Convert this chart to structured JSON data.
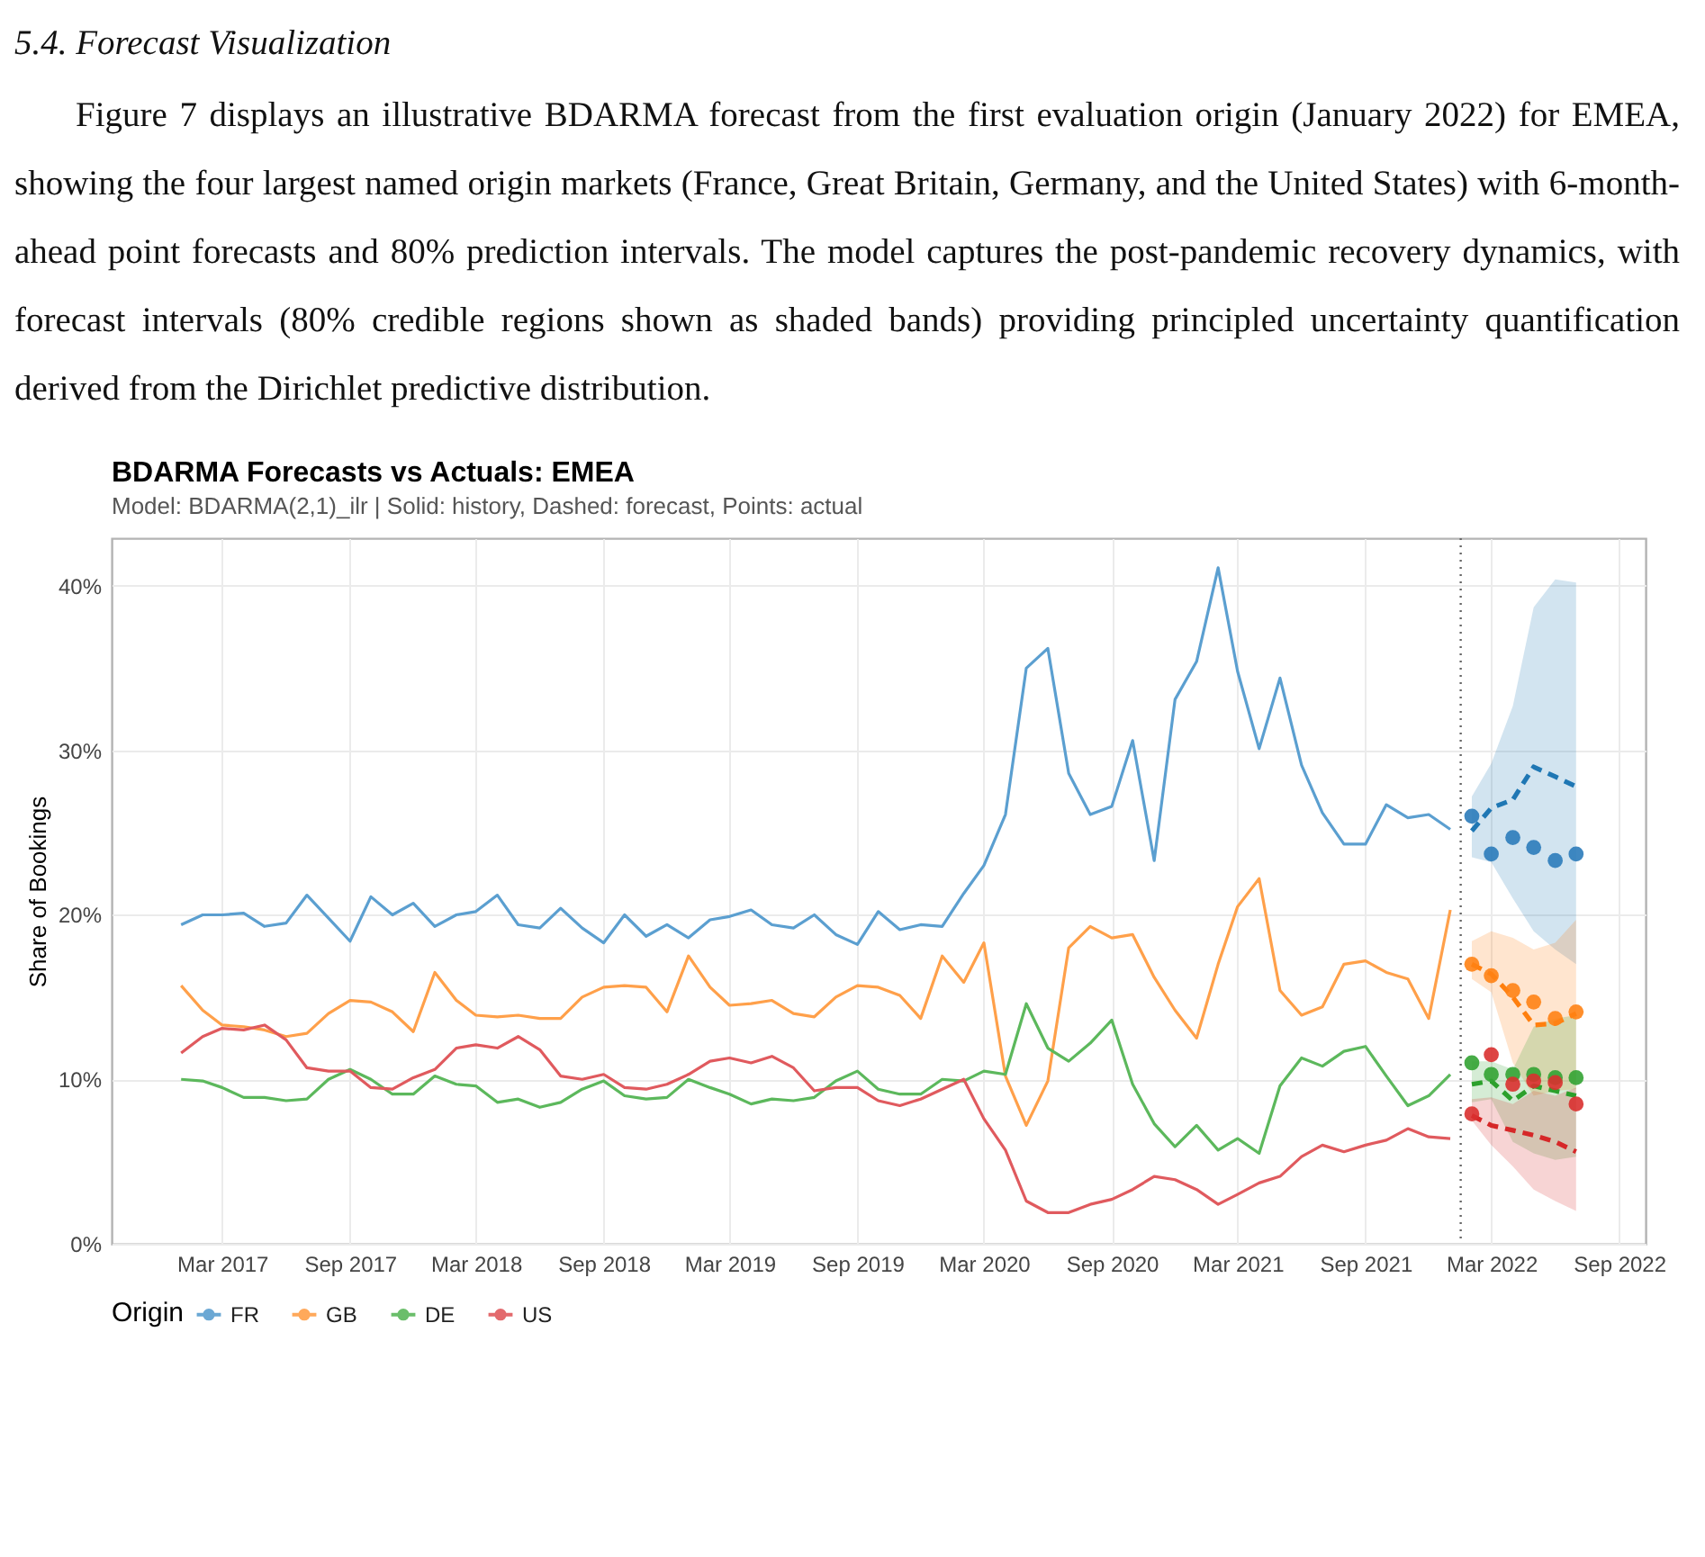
{
  "chart_data": {
    "type": "line",
    "title": "BDARMA Forecasts vs Actuals: EMEA",
    "subtitle": "Model: BDARMA(2,1)_ilr | Solid: history, Dashed: forecast, Points: actual",
    "ylabel": "Share of Bookings",
    "legend_title": "Origin",
    "legend": "bottom",
    "grid": true,
    "annotations": [
      "5.4. Forecast Visualization",
      "Figure 7 displays an illustrative BDARMA forecast from the first evaluation origin (January 2022) for EMEA, showing the four largest named origin markets (France, Great Britain, Germany, and the United States) with 6-month-ahead point forecasts and 80% prediction intervals. The model captures the post-pandemic recovery dynamics, with forecast intervals (80% credible regions shown as shaded bands) providing principled uncertainty quantification derived from the Dirichlet predictive distribution."
    ],
    "xlim": [
      "2016-09-23",
      "2022-10-09"
    ],
    "xticks": [
      {
        "value": "2017-03",
        "label": "Mar 2017"
      },
      {
        "value": "2017-09",
        "label": "Sep 2017"
      },
      {
        "value": "2018-03",
        "label": "Mar 2018"
      },
      {
        "value": "2018-09",
        "label": "Sep 2018"
      },
      {
        "value": "2019-03",
        "label": "Mar 2019"
      },
      {
        "value": "2019-09",
        "label": "Sep 2019"
      },
      {
        "value": "2020-03",
        "label": "Mar 2020"
      },
      {
        "value": "2020-09",
        "label": "Sep 2020"
      },
      {
        "value": "2021-03",
        "label": "Mar 2021"
      },
      {
        "value": "2021-09",
        "label": "Sep 2021"
      },
      {
        "value": "2022-03",
        "label": "Mar 2022"
      },
      {
        "value": "2022-09",
        "label": "Sep 2022"
      }
    ],
    "ylim": [
      0,
      42.9
    ],
    "yticks": [
      {
        "value": 0,
        "label": "0%"
      },
      {
        "value": 10,
        "label": "10%"
      },
      {
        "value": 20,
        "label": "20%"
      },
      {
        "value": 30,
        "label": "30%"
      },
      {
        "value": 40,
        "label": "40%"
      }
    ],
    "ref_lines": [
      {
        "axis": "x",
        "value": "2022-01-16",
        "color": "#666666",
        "line_style": "dotted"
      }
    ],
    "series": [
      {
        "name": "FR",
        "line_style": "solid",
        "color": "#5b9fd0",
        "x": [
          "2017-01",
          "2017-02",
          "2017-03",
          "2017-04",
          "2017-05",
          "2017-06",
          "2017-07",
          "2017-08",
          "2017-09",
          "2017-10",
          "2017-11",
          "2017-12",
          "2018-01",
          "2018-02",
          "2018-03",
          "2018-04",
          "2018-05",
          "2018-06",
          "2018-07",
          "2018-08",
          "2018-09",
          "2018-10",
          "2018-11",
          "2018-12",
          "2019-01",
          "2019-02",
          "2019-03",
          "2019-04",
          "2019-05",
          "2019-06",
          "2019-07",
          "2019-08",
          "2019-09",
          "2019-10",
          "2019-11",
          "2019-12",
          "2020-01",
          "2020-02",
          "2020-03",
          "2020-04",
          "2020-05",
          "2020-06",
          "2020-07",
          "2020-08",
          "2020-09",
          "2020-10",
          "2020-11",
          "2020-12",
          "2021-01",
          "2021-02",
          "2021-03",
          "2021-04",
          "2021-05",
          "2021-06",
          "2021-07",
          "2021-08",
          "2021-09",
          "2021-10",
          "2021-11",
          "2021-12",
          "2022-01"
        ],
        "values": [
          19.4,
          20.0,
          20.0,
          20.1,
          19.3,
          19.5,
          21.2,
          19.8,
          18.4,
          21.1,
          20.0,
          20.7,
          19.3,
          20.0,
          20.2,
          21.2,
          19.4,
          19.2,
          20.4,
          19.2,
          18.3,
          20.0,
          18.7,
          19.4,
          18.6,
          19.7,
          19.9,
          20.3,
          19.4,
          19.2,
          20.0,
          18.8,
          18.2,
          20.2,
          19.1,
          19.4,
          19.3,
          21.3,
          23.0,
          26.1,
          35.0,
          36.2,
          28.6,
          26.1,
          26.6,
          30.6,
          23.3,
          33.1,
          35.4,
          41.1,
          34.8,
          30.1,
          34.4,
          29.1,
          26.2,
          24.3,
          24.3,
          26.7,
          25.9,
          26.1,
          25.2
        ]
      },
      {
        "name": "GB",
        "line_style": "solid",
        "color": "#ffa04a",
        "x": [
          "2017-01",
          "2017-02",
          "2017-03",
          "2017-04",
          "2017-05",
          "2017-06",
          "2017-07",
          "2017-08",
          "2017-09",
          "2017-10",
          "2017-11",
          "2017-12",
          "2018-01",
          "2018-02",
          "2018-03",
          "2018-04",
          "2018-05",
          "2018-06",
          "2018-07",
          "2018-08",
          "2018-09",
          "2018-10",
          "2018-11",
          "2018-12",
          "2019-01",
          "2019-02",
          "2019-03",
          "2019-04",
          "2019-05",
          "2019-06",
          "2019-07",
          "2019-08",
          "2019-09",
          "2019-10",
          "2019-11",
          "2019-12",
          "2020-01",
          "2020-02",
          "2020-03",
          "2020-04",
          "2020-05",
          "2020-06",
          "2020-07",
          "2020-08",
          "2020-09",
          "2020-10",
          "2020-11",
          "2020-12",
          "2021-01",
          "2021-02",
          "2021-03",
          "2021-04",
          "2021-05",
          "2021-06",
          "2021-07",
          "2021-08",
          "2021-09",
          "2021-10",
          "2021-11",
          "2021-12",
          "2022-01"
        ],
        "values": [
          15.7,
          14.2,
          13.3,
          13.2,
          13.0,
          12.6,
          12.8,
          14.0,
          14.8,
          14.7,
          14.1,
          12.9,
          16.5,
          14.8,
          13.9,
          13.8,
          13.9,
          13.7,
          13.7,
          15.0,
          15.6,
          15.7,
          15.6,
          14.1,
          17.5,
          15.6,
          14.5,
          14.6,
          14.8,
          14.0,
          13.8,
          15.0,
          15.7,
          15.6,
          15.1,
          13.7,
          17.5,
          15.9,
          18.3,
          10.2,
          7.2,
          9.9,
          18.0,
          19.3,
          18.6,
          18.8,
          16.2,
          14.2,
          12.5,
          17.0,
          20.5,
          22.2,
          15.4,
          13.9,
          14.4,
          17.0,
          17.2,
          16.5,
          16.1,
          13.7,
          20.3
        ]
      },
      {
        "name": "DE",
        "line_style": "solid",
        "color": "#5cb85c",
        "x": [
          "2017-01",
          "2017-02",
          "2017-03",
          "2017-04",
          "2017-05",
          "2017-06",
          "2017-07",
          "2017-08",
          "2017-09",
          "2017-10",
          "2017-11",
          "2017-12",
          "2018-01",
          "2018-02",
          "2018-03",
          "2018-04",
          "2018-05",
          "2018-06",
          "2018-07",
          "2018-08",
          "2018-09",
          "2018-10",
          "2018-11",
          "2018-12",
          "2019-01",
          "2019-02",
          "2019-03",
          "2019-04",
          "2019-05",
          "2019-06",
          "2019-07",
          "2019-08",
          "2019-09",
          "2019-10",
          "2019-11",
          "2019-12",
          "2020-01",
          "2020-02",
          "2020-03",
          "2020-04",
          "2020-05",
          "2020-06",
          "2020-07",
          "2020-08",
          "2020-09",
          "2020-10",
          "2020-11",
          "2020-12",
          "2021-01",
          "2021-02",
          "2021-03",
          "2021-04",
          "2021-05",
          "2021-06",
          "2021-07",
          "2021-08",
          "2021-09",
          "2021-10",
          "2021-11",
          "2021-12",
          "2022-01"
        ],
        "values": [
          10.0,
          9.9,
          9.5,
          8.9,
          8.9,
          8.7,
          8.8,
          10.0,
          10.6,
          10.0,
          9.1,
          9.1,
          10.2,
          9.7,
          9.6,
          8.6,
          8.8,
          8.3,
          8.6,
          9.4,
          9.9,
          9.0,
          8.8,
          8.9,
          10.0,
          9.5,
          9.1,
          8.5,
          8.8,
          8.7,
          8.9,
          9.9,
          10.5,
          9.4,
          9.1,
          9.1,
          10.0,
          9.9,
          10.5,
          10.3,
          14.6,
          11.9,
          11.1,
          12.2,
          13.6,
          9.7,
          7.3,
          5.9,
          7.2,
          5.7,
          6.4,
          5.5,
          9.6,
          11.3,
          10.8,
          11.7,
          12.0,
          10.2,
          8.4,
          9.0,
          10.3
        ]
      },
      {
        "name": "US",
        "line_style": "solid",
        "color": "#e05a5e",
        "x": [
          "2017-01",
          "2017-02",
          "2017-03",
          "2017-04",
          "2017-05",
          "2017-06",
          "2017-07",
          "2017-08",
          "2017-09",
          "2017-10",
          "2017-11",
          "2017-12",
          "2018-01",
          "2018-02",
          "2018-03",
          "2018-04",
          "2018-05",
          "2018-06",
          "2018-07",
          "2018-08",
          "2018-09",
          "2018-10",
          "2018-11",
          "2018-12",
          "2019-01",
          "2019-02",
          "2019-03",
          "2019-04",
          "2019-05",
          "2019-06",
          "2019-07",
          "2019-08",
          "2019-09",
          "2019-10",
          "2019-11",
          "2019-12",
          "2020-01",
          "2020-02",
          "2020-03",
          "2020-04",
          "2020-05",
          "2020-06",
          "2020-07",
          "2020-08",
          "2020-09",
          "2020-10",
          "2020-11",
          "2020-12",
          "2021-01",
          "2021-02",
          "2021-03",
          "2021-04",
          "2021-05",
          "2021-06",
          "2021-07",
          "2021-08",
          "2021-09",
          "2021-10",
          "2021-11",
          "2021-12",
          "2022-01"
        ],
        "values": [
          11.6,
          12.6,
          13.1,
          13.0,
          13.3,
          12.4,
          10.7,
          10.5,
          10.5,
          9.5,
          9.4,
          10.1,
          10.6,
          11.9,
          12.1,
          11.9,
          12.6,
          11.8,
          10.2,
          10.0,
          10.3,
          9.5,
          9.4,
          9.7,
          10.3,
          11.1,
          11.3,
          11.0,
          11.4,
          10.7,
          9.3,
          9.5,
          9.5,
          8.7,
          8.4,
          8.8,
          9.4,
          10.0,
          7.6,
          5.7,
          2.6,
          1.9,
          1.9,
          2.4,
          2.7,
          3.3,
          4.1,
          3.9,
          3.3,
          2.4,
          3.0,
          3.7,
          4.1,
          5.3,
          6.0,
          5.6,
          6.0,
          6.3,
          7.0,
          6.5,
          6.4
        ]
      },
      {
        "type": "line",
        "line_style": "dashed",
        "color": "#1f77b4",
        "x": [
          "2022-02",
          "2022-03",
          "2022-04",
          "2022-05",
          "2022-06",
          "2022-07"
        ],
        "values": [
          25.1,
          26.5,
          27.0,
          29.0,
          28.4,
          27.8
        ],
        "lower": [
          23.5,
          23.2,
          21.0,
          19.0,
          17.9,
          17.0
        ],
        "upper": [
          27.2,
          29.2,
          32.7,
          38.7,
          40.4,
          40.2
        ]
      },
      {
        "type": "line",
        "line_style": "dashed",
        "color": "#ff7f0e",
        "x": [
          "2022-02",
          "2022-03",
          "2022-04",
          "2022-05",
          "2022-06",
          "2022-07"
        ],
        "values": [
          17.0,
          16.4,
          15.0,
          13.3,
          13.4,
          14.0
        ],
        "lower": [
          16.1,
          15.3,
          11.0,
          9.0,
          9.3,
          9.4
        ],
        "upper": [
          18.4,
          19.0,
          18.6,
          17.9,
          18.3,
          19.7
        ]
      },
      {
        "type": "line",
        "line_style": "dashed",
        "color": "#2ca02c",
        "x": [
          "2022-02",
          "2022-03",
          "2022-04",
          "2022-05",
          "2022-06",
          "2022-07"
        ],
        "values": [
          9.7,
          9.9,
          8.7,
          9.6,
          9.3,
          9.0
        ],
        "lower": [
          8.6,
          8.8,
          6.2,
          5.5,
          5.1,
          5.3
        ],
        "upper": [
          11.1,
          11.1,
          10.6,
          13.2,
          13.7,
          13.9
        ]
      },
      {
        "type": "line",
        "line_style": "dashed",
        "color": "#d62728",
        "x": [
          "2022-02",
          "2022-03",
          "2022-04",
          "2022-05",
          "2022-06",
          "2022-07"
        ],
        "values": [
          7.8,
          7.2,
          6.9,
          6.6,
          6.2,
          5.6
        ],
        "lower": [
          7.5,
          6.0,
          4.7,
          3.3,
          2.6,
          2.0
        ],
        "upper": [
          8.8,
          8.9,
          8.5,
          9.3,
          9.0,
          9.5
        ]
      },
      {
        "type": "scatter",
        "marker": "circle",
        "color": "#2b7bba",
        "x": [
          "2022-02",
          "2022-03",
          "2022-04",
          "2022-05",
          "2022-06",
          "2022-07"
        ],
        "values": [
          26.0,
          23.7,
          24.7,
          24.1,
          23.3,
          23.7
        ]
      },
      {
        "type": "scatter",
        "marker": "circle",
        "color": "#ff8214",
        "x": [
          "2022-02",
          "2022-03",
          "2022-04",
          "2022-05",
          "2022-06",
          "2022-07"
        ],
        "values": [
          17.0,
          16.3,
          15.4,
          14.7,
          13.7,
          14.1
        ]
      },
      {
        "type": "scatter",
        "marker": "circle",
        "color": "#33a333",
        "x": [
          "2022-02",
          "2022-03",
          "2022-04",
          "2022-05",
          "2022-06",
          "2022-07"
        ],
        "values": [
          11.0,
          10.3,
          10.3,
          10.3,
          10.1,
          10.1
        ]
      },
      {
        "type": "scatter",
        "marker": "circle",
        "color": "#d9302f",
        "x": [
          "2022-02",
          "2022-03",
          "2022-04",
          "2022-05",
          "2022-06",
          "2022-07"
        ],
        "values": [
          7.9,
          11.5,
          9.7,
          9.9,
          9.8,
          8.5
        ]
      }
    ]
  }
}
